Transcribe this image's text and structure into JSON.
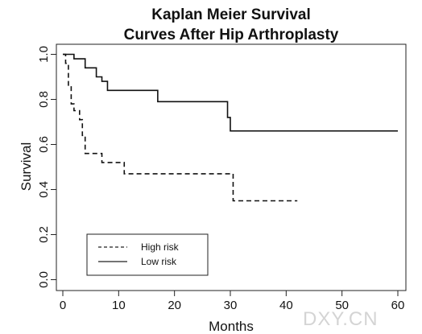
{
  "chart_data": {
    "type": "line",
    "title_lines": [
      "Kaplan Meier Survival",
      "Curves After Hip Arthroplasty"
    ],
    "xlabel": "Months",
    "ylabel": "Survival",
    "xlim": [
      0,
      60
    ],
    "ylim": [
      0,
      1
    ],
    "x_ticks": [
      0,
      10,
      20,
      30,
      40,
      50,
      60
    ],
    "y_ticks": [
      0.0,
      0.2,
      0.4,
      0.6,
      0.8,
      1.0
    ],
    "y_tick_labels": [
      "0.0",
      "0.2",
      "0.4",
      "0.6",
      "0.8",
      "1.0"
    ],
    "step": true,
    "grid": false,
    "legend_position": "bottom-left",
    "series": [
      {
        "name": "High risk",
        "line_style": "dashed",
        "x": [
          0,
          0.5,
          1,
          1.5,
          2,
          3,
          3.5,
          4,
          6,
          7,
          11,
          30,
          30.5,
          42
        ],
        "y": [
          1.0,
          0.96,
          0.86,
          0.78,
          0.75,
          0.71,
          0.64,
          0.56,
          0.56,
          0.52,
          0.47,
          0.47,
          0.35,
          0.35
        ]
      },
      {
        "name": "Low risk",
        "line_style": "solid",
        "x": [
          0,
          2,
          4,
          6,
          7,
          8,
          9.5,
          11,
          17,
          29.5,
          30,
          30.5,
          60
        ],
        "y": [
          1.0,
          0.98,
          0.94,
          0.9,
          0.88,
          0.84,
          0.84,
          0.84,
          0.79,
          0.72,
          0.66,
          0.66,
          0.66
        ]
      }
    ]
  },
  "watermark": "DXY.CN"
}
